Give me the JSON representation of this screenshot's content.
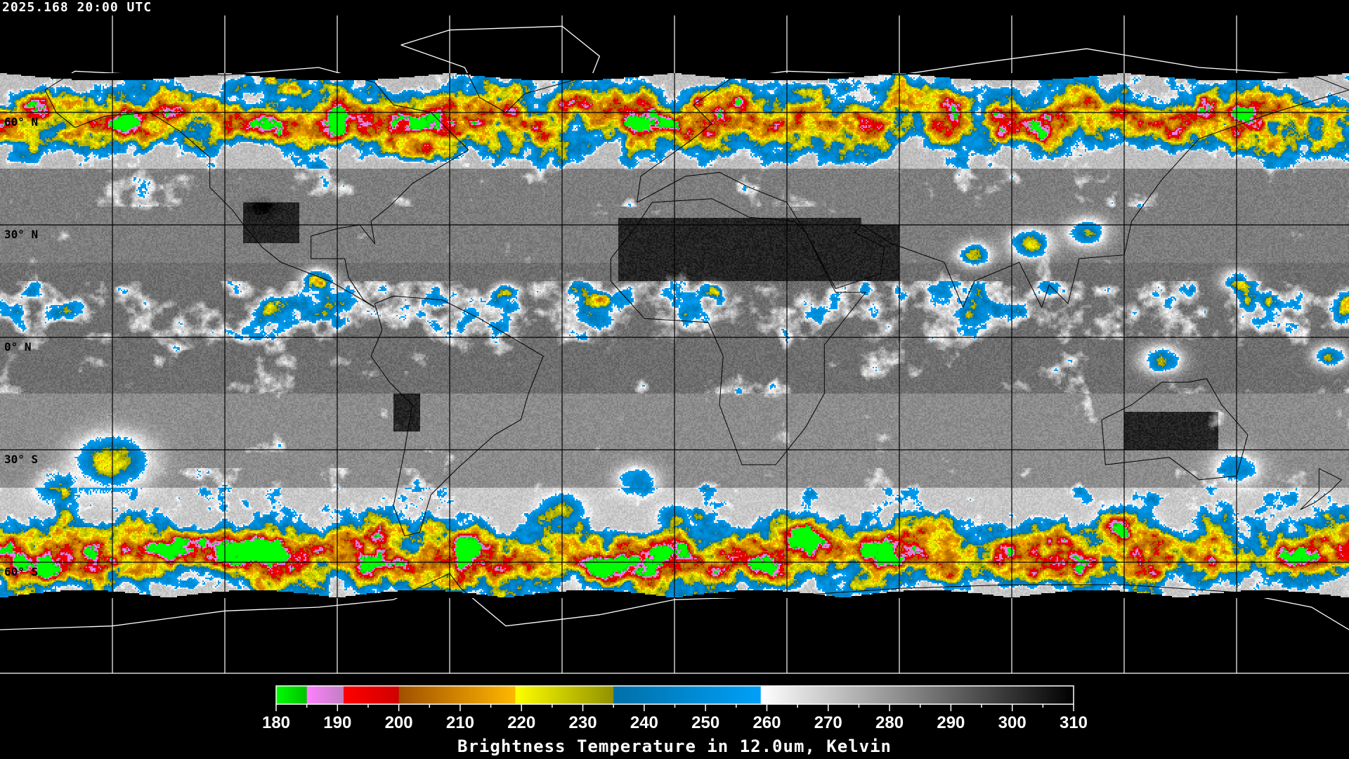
{
  "header": {
    "timestamp": "2025.168 20:00 UTC"
  },
  "map": {
    "projection": "equirectangular",
    "lat_labels": [
      "60° N",
      "30° N",
      "0° N",
      "30° S",
      "60° S"
    ],
    "grid_spacing_degrees": 30
  },
  "colorbar": {
    "title": "Brightness Temperature in 12.0um, Kelvin",
    "range": [
      180,
      310
    ],
    "tick_labels": [
      "180",
      "190",
      "200",
      "210",
      "220",
      "230",
      "240",
      "250",
      "260",
      "270",
      "280",
      "290",
      "300",
      "310"
    ],
    "segments": [
      {
        "from": 180,
        "to": 185,
        "start": "#00ff00",
        "end": "#00c000"
      },
      {
        "from": 185,
        "to": 191,
        "start": "#ff80ff",
        "end": "#c080c0"
      },
      {
        "from": 191,
        "to": 200,
        "start": "#ff0000",
        "end": "#d00000"
      },
      {
        "from": 200,
        "to": 219,
        "start": "#a05000",
        "end": "#ffb800"
      },
      {
        "from": 219,
        "to": 235,
        "start": "#ffff00",
        "end": "#909000"
      },
      {
        "from": 235,
        "to": 259,
        "start": "#0070a8",
        "end": "#00a0f8"
      },
      {
        "from": 259,
        "to": 310,
        "start": "#ffffff",
        "end": "#000000"
      }
    ]
  }
}
